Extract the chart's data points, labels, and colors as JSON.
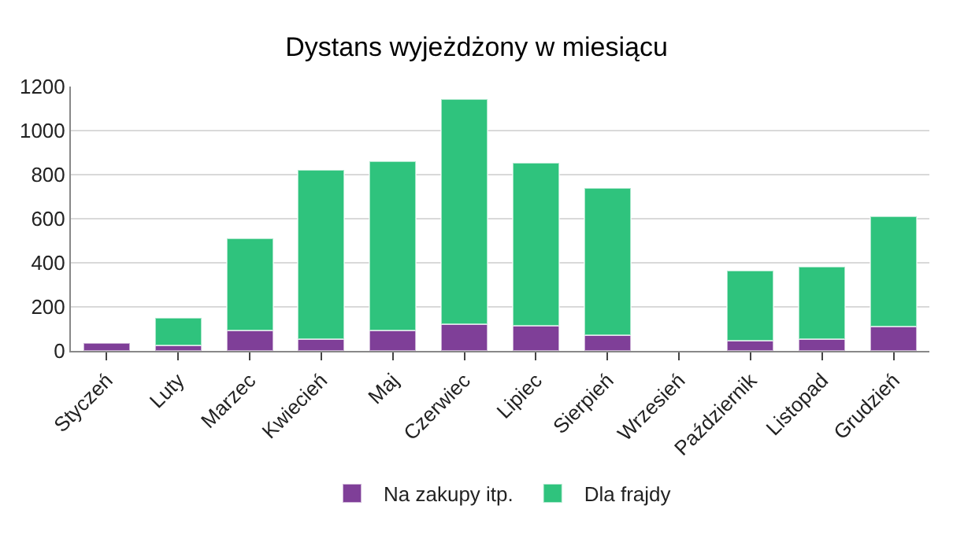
{
  "chart_data": {
    "type": "bar",
    "title": "Dystans wyjeżdżony w miesiącu",
    "categories": [
      "Styczeń",
      "Luty",
      "Marzec",
      "Kwiecień",
      "Maj",
      "Czerwiec",
      "Lipiec",
      "Sierpień",
      "Wrzesień",
      "Październik",
      "Listopad",
      "Grudzień"
    ],
    "series": [
      {
        "name": "Na zakupy itp.",
        "color": "#7f3f98",
        "values": [
          37,
          25,
          94,
          55,
          92,
          122,
          115,
          71,
          null,
          48,
          53,
          110
        ]
      },
      {
        "name": "Dla frajdy",
        "color": "#2fc37d",
        "values": [
          null,
          125,
          416,
          766,
          768,
          1021,
          738,
          667,
          null,
          318,
          329,
          499
        ]
      }
    ],
    "stacked": true,
    "ylim": [
      0,
      1200
    ],
    "yticks": [
      0,
      200,
      400,
      600,
      800,
      1000,
      1200
    ],
    "grid": "y",
    "legend": "bottom"
  }
}
